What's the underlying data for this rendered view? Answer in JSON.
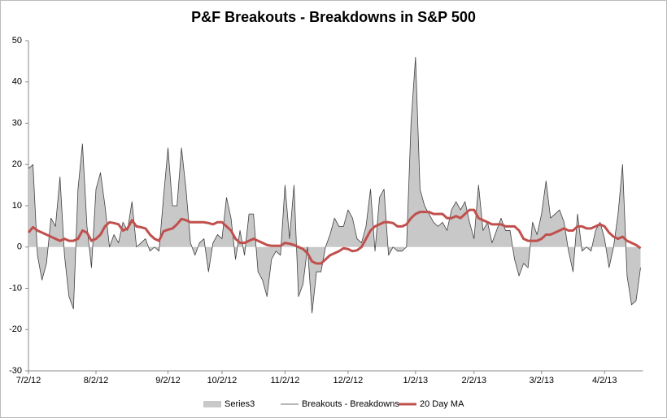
{
  "chart_data": {
    "type": "line",
    "title": "P&F Breakouts - Breakdowns in S&P 500",
    "categories": [
      "7/2/12",
      null,
      null,
      null,
      null,
      null,
      null,
      null,
      null,
      null,
      null,
      null,
      null,
      null,
      null,
      "8/2/12",
      null,
      null,
      null,
      null,
      null,
      null,
      null,
      null,
      null,
      null,
      null,
      null,
      null,
      null,
      null,
      "9/2/12",
      null,
      null,
      null,
      null,
      null,
      null,
      null,
      null,
      null,
      null,
      null,
      "10/2/12",
      null,
      null,
      null,
      null,
      null,
      null,
      null,
      null,
      null,
      null,
      null,
      null,
      null,
      "11/2/12",
      null,
      null,
      null,
      null,
      null,
      null,
      null,
      null,
      null,
      null,
      null,
      null,
      null,
      "12/2/12",
      null,
      null,
      null,
      null,
      null,
      null,
      null,
      null,
      null,
      null,
      null,
      null,
      null,
      null,
      "1/2/13",
      null,
      null,
      null,
      null,
      null,
      null,
      null,
      null,
      null,
      null,
      null,
      null,
      "2/2/13",
      null,
      null,
      null,
      null,
      null,
      null,
      null,
      null,
      null,
      null,
      null,
      null,
      null,
      null,
      "3/2/13",
      null,
      null,
      null,
      null,
      null,
      null,
      null,
      null,
      null,
      null,
      null,
      null,
      null,
      "4/2/13",
      null,
      null,
      null,
      null,
      null,
      null,
      null,
      null
    ],
    "series": [
      {
        "name": "Series3",
        "kind": "area",
        "color": "#c8c8c8",
        "values": [
          19,
          20,
          -2,
          -8,
          -4,
          7,
          5,
          17,
          -2,
          -12,
          -15,
          14,
          25,
          5,
          -5,
          14,
          18,
          10,
          0,
          3,
          1,
          6,
          4,
          11,
          0,
          1,
          2,
          -1,
          0,
          -1,
          12,
          24,
          10,
          10,
          24,
          14,
          1,
          -2,
          1,
          2,
          -6,
          1,
          3,
          2,
          12,
          7,
          -3,
          4,
          -2,
          8,
          8,
          -6,
          -8,
          -12,
          -3,
          -1,
          -2,
          15,
          2,
          15,
          -12,
          -9,
          0,
          -16,
          -6,
          -6,
          0,
          3,
          7,
          5,
          5,
          9,
          7,
          2,
          1,
          5,
          14,
          -1,
          12,
          14,
          -2,
          0,
          -1,
          -1,
          0,
          30,
          46,
          14,
          10,
          8,
          6,
          5,
          6,
          4,
          9,
          11,
          9,
          11,
          6,
          2,
          15,
          4,
          6,
          1,
          4,
          7,
          4,
          4,
          -3,
          -7,
          -4,
          -5,
          6,
          3,
          8,
          16,
          7,
          8,
          9,
          6,
          -1,
          -6,
          8,
          -1,
          0,
          -1,
          4,
          6,
          2,
          -5,
          0,
          8,
          20,
          -7,
          -14,
          -13,
          -5
        ]
      },
      {
        "name": "Breakouts - Breakdowns",
        "kind": "line",
        "color": "#404040",
        "width": 0.8,
        "values": [
          19,
          20,
          -2,
          -8,
          -4,
          7,
          5,
          17,
          -2,
          -12,
          -15,
          14,
          25,
          5,
          -5,
          14,
          18,
          10,
          0,
          3,
          1,
          6,
          4,
          11,
          0,
          1,
          2,
          -1,
          0,
          -1,
          12,
          24,
          10,
          10,
          24,
          14,
          1,
          -2,
          1,
          2,
          -6,
          1,
          3,
          2,
          12,
          7,
          -3,
          4,
          -2,
          8,
          8,
          -6,
          -8,
          -12,
          -3,
          -1,
          -2,
          15,
          2,
          15,
          -12,
          -9,
          0,
          -16,
          -6,
          -6,
          0,
          3,
          7,
          5,
          5,
          9,
          7,
          2,
          1,
          5,
          14,
          -1,
          12,
          14,
          -2,
          0,
          -1,
          -1,
          0,
          30,
          46,
          14,
          10,
          8,
          6,
          5,
          6,
          4,
          9,
          11,
          9,
          11,
          6,
          2,
          15,
          4,
          6,
          1,
          4,
          7,
          4,
          4,
          -3,
          -7,
          -4,
          -5,
          6,
          3,
          8,
          16,
          7,
          8,
          9,
          6,
          -1,
          -6,
          8,
          -1,
          0,
          -1,
          4,
          6,
          2,
          -5,
          0,
          8,
          20,
          -7,
          -14,
          -13,
          -5
        ]
      },
      {
        "name": "20 Day MA",
        "kind": "line",
        "color": "#c0504d",
        "width": 3,
        "values": [
          3.5,
          4.8,
          4,
          3.5,
          3,
          2.5,
          2,
          1.5,
          2,
          1.5,
          1.5,
          2,
          4,
          3.5,
          1.5,
          2,
          3,
          5,
          6,
          5.8,
          5.5,
          4,
          4.5,
          6.5,
          5,
          4.8,
          4.5,
          3,
          2,
          1.5,
          3.8,
          4.2,
          4.5,
          5.5,
          6.8,
          6.5,
          6,
          6,
          6,
          6,
          5.8,
          5.5,
          6,
          6,
          5,
          4,
          2,
          1,
          1,
          1.5,
          2,
          1.5,
          1,
          0.5,
          0.3,
          0.3,
          0.3,
          1,
          0.8,
          0.5,
          0,
          -0.5,
          -1.5,
          -3.5,
          -4,
          -4,
          -3,
          -2,
          -1.5,
          -1,
          -0.3,
          -0.5,
          -1,
          -0.8,
          0,
          2,
          4,
          5,
          5.5,
          6,
          6,
          5.8,
          5,
          5,
          5.5,
          7,
          8,
          8.5,
          8.5,
          8.5,
          8,
          8,
          8,
          7,
          7,
          7.5,
          7,
          8,
          9,
          9,
          7,
          6.5,
          6,
          5.5,
          5.5,
          5.5,
          5,
          5,
          5,
          4,
          2,
          1.5,
          1.5,
          1.5,
          2,
          3,
          3,
          3.5,
          4,
          4.5,
          4,
          4,
          5,
          5,
          4.5,
          4.5,
          5,
          5.5,
          5,
          3.5,
          2.5,
          2,
          2.5,
          1.5,
          1,
          0.5,
          -0.3
        ]
      }
    ],
    "ylim": [
      -30,
      50
    ],
    "yticks": [
      -30,
      -20,
      -10,
      0,
      10,
      20,
      30,
      40,
      50
    ],
    "grid": false,
    "legend": "bottom"
  }
}
